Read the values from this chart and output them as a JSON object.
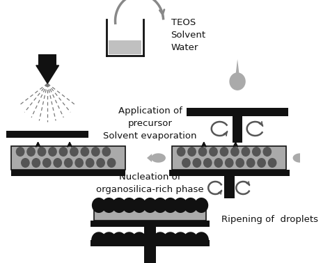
{
  "bg_color": "#ffffff",
  "dark_color": "#111111",
  "light_gray": "#aaaaaa",
  "medium_gray": "#c0c0c0",
  "dark_gray": "#555555",
  "film_gray": "#aaaaaa",
  "dot_gray": "#555555",
  "arrow_gray": "#888888",
  "label_fontsize": 9.5,
  "figsize": [
    4.74,
    3.78
  ],
  "dpi": 100,
  "texts": {
    "teos": "TEOS\nSolvent\nWater",
    "application": "Application of\nprecursor",
    "solvent": "Solvent evaporation",
    "nucleation": "Nucleation of\norganosilica-rich phase",
    "ripening": "Ripening of  droplets"
  }
}
